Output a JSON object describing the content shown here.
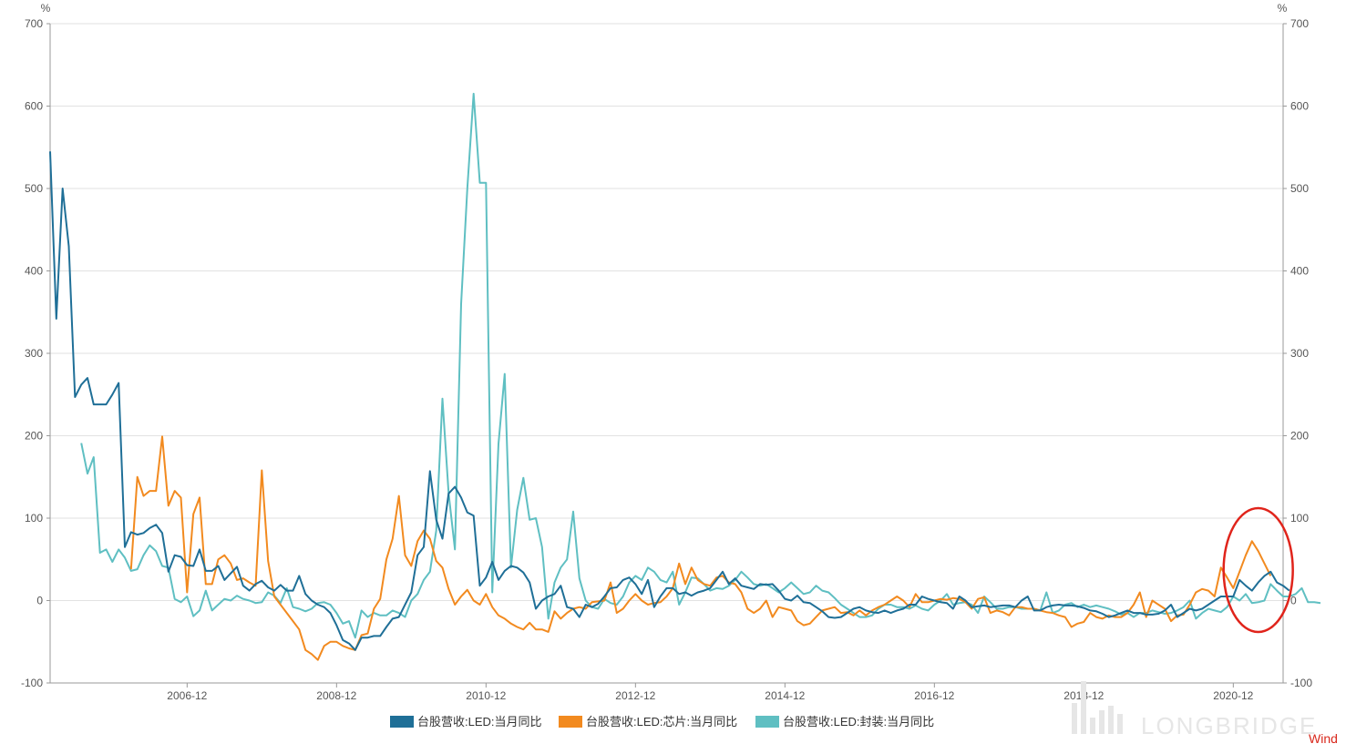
{
  "chart_data": {
    "type": "line",
    "title": "",
    "unit_left": "%",
    "unit_right": "%",
    "ylim": [
      -100,
      700
    ],
    "y_ticks": [
      -100,
      0,
      100,
      200,
      300,
      400,
      500,
      600,
      700
    ],
    "x_ticks": [
      "2006-12",
      "2008-12",
      "2010-12",
      "2012-12",
      "2014-12",
      "2016-12",
      "2018-12",
      "2020-12"
    ],
    "x_range": [
      "2005-02",
      "2021-08"
    ],
    "grid": true,
    "legend_position": "bottom",
    "colors": {
      "series1": "#1f6f97",
      "series2": "#f28a1f",
      "series3": "#5fbfc2",
      "annotation": "#e0241b"
    },
    "annotation": {
      "type": "ellipse",
      "color": "#e0241b",
      "center": [
        "2021-04",
        37
      ],
      "note": ""
    },
    "series": [
      {
        "name": "台股营收:LED:当月同比",
        "start": "2005-02",
        "values": [
          545,
          342,
          500,
          430,
          247,
          262,
          270,
          238,
          238,
          238,
          250,
          264,
          65,
          83,
          80,
          82,
          88,
          92,
          82,
          35,
          55,
          53,
          43,
          42,
          62,
          36,
          36,
          42,
          25,
          33,
          41,
          18,
          12,
          20,
          24,
          16,
          12,
          19,
          12,
          12,
          30,
          8,
          0,
          -5,
          -8,
          -15,
          -30,
          -48,
          -52,
          -60,
          -45,
          -45,
          -43,
          -43,
          -32,
          -22,
          -20,
          -5,
          10,
          55,
          65,
          157,
          98,
          75,
          130,
          138,
          125,
          107,
          103,
          18,
          28,
          47,
          25,
          36,
          42,
          40,
          34,
          22,
          -10,
          0,
          5,
          8,
          18,
          -8,
          -10,
          -20,
          -5,
          -8,
          -4,
          5,
          15,
          16,
          25,
          28,
          20,
          8,
          25,
          -8,
          5,
          15,
          15,
          8,
          10,
          6,
          10,
          12,
          15,
          25,
          35,
          20,
          27,
          18,
          16,
          14,
          20,
          19,
          20,
          12,
          2,
          0,
          6,
          -2,
          -3,
          -8,
          -13,
          -20,
          -21,
          -20,
          -15,
          -10,
          -8,
          -12,
          -14,
          -15,
          -12,
          -15,
          -12,
          -10,
          -5,
          -5,
          5,
          2,
          0,
          -2,
          -3,
          -10,
          5,
          0,
          -8,
          -7,
          -6,
          -8,
          -7,
          -6,
          -6,
          -8,
          0,
          5,
          -12,
          -12,
          -8,
          -6,
          -5,
          -6,
          -6,
          -7,
          -9,
          -12,
          -13,
          -16,
          -20,
          -18,
          -15,
          -12,
          -15,
          -15,
          -17,
          -17,
          -16,
          -12,
          -5,
          -20,
          -15,
          -10,
          -12,
          -10,
          -5,
          0,
          5,
          5,
          5,
          25,
          18,
          12,
          22,
          30,
          35,
          22,
          18,
          12
        ]
      },
      {
        "name": "台股营收:LED:芯片:当月同比",
        "start": "2006-03",
        "values": [
          38,
          150,
          127,
          133,
          133,
          199,
          115,
          133,
          125,
          10,
          105,
          125,
          20,
          20,
          50,
          55,
          45,
          25,
          27,
          22,
          18,
          158,
          48,
          5,
          -5,
          -15,
          -25,
          -35,
          -60,
          -65,
          -72,
          -55,
          -50,
          -50,
          -55,
          -58,
          -60,
          -42,
          -40,
          -10,
          2,
          50,
          75,
          127,
          55,
          42,
          72,
          85,
          75,
          48,
          40,
          14,
          -5,
          5,
          13,
          0,
          -5,
          8,
          -8,
          -18,
          -22,
          -28,
          -32,
          -35,
          -27,
          -35,
          -35,
          -38,
          -13,
          -22,
          -15,
          -10,
          -8,
          -10,
          -2,
          -1,
          0,
          22,
          -15,
          -10,
          0,
          8,
          0,
          -5,
          -3,
          -2,
          5,
          15,
          45,
          20,
          40,
          25,
          20,
          18,
          28,
          30,
          22,
          20,
          10,
          -10,
          -15,
          -10,
          0,
          -20,
          -8,
          -10,
          -12,
          -25,
          -30,
          -28,
          -20,
          -12,
          -10,
          -8,
          -15,
          -14,
          -18,
          -12,
          -18,
          -12,
          -8,
          -5,
          0,
          5,
          0,
          -8,
          8,
          -2,
          -2,
          0,
          2,
          1,
          3,
          2,
          -2,
          -10,
          2,
          4,
          -15,
          -12,
          -14,
          -18,
          -8,
          -8,
          -10,
          -10,
          -12,
          -14,
          -15,
          -18,
          -20,
          -32,
          -28,
          -26,
          -15,
          -20,
          -22,
          -18,
          -20,
          -20,
          -15,
          -5,
          10,
          -20,
          0,
          -5,
          -10,
          -25,
          -18,
          -17,
          -5,
          10,
          14,
          12,
          5,
          40,
          28,
          15,
          35,
          55,
          72,
          60,
          45,
          30
        ]
      },
      {
        "name": "台股营收:LED:封装:当月同比",
        "start": "2005-07",
        "values": [
          191,
          154,
          174,
          58,
          62,
          47,
          62,
          52,
          36,
          38,
          55,
          67,
          60,
          42,
          40,
          2,
          -2,
          5,
          -19,
          -12,
          12,
          -12,
          -5,
          2,
          0,
          6,
          2,
          0,
          -3,
          -2,
          10,
          6,
          -3,
          15,
          -8,
          -10,
          -13,
          -10,
          -3,
          -2,
          -5,
          -15,
          -28,
          -25,
          -45,
          -12,
          -20,
          -15,
          -18,
          -18,
          -12,
          -15,
          -20,
          0,
          8,
          25,
          35,
          85,
          245,
          130,
          62,
          360,
          500,
          615,
          507,
          507,
          10,
          190,
          275,
          40,
          110,
          149,
          98,
          100,
          65,
          -22,
          22,
          40,
          50,
          108,
          27,
          0,
          -8,
          -10,
          2,
          -3,
          -5,
          5,
          22,
          30,
          25,
          40,
          35,
          25,
          22,
          35,
          -5,
          10,
          28,
          27,
          20,
          12,
          15,
          14,
          18,
          25,
          35,
          28,
          20,
          18,
          20,
          15,
          10,
          15,
          22,
          15,
          8,
          10,
          18,
          12,
          10,
          3,
          -5,
          -10,
          -15,
          -20,
          -20,
          -18,
          -10,
          -5,
          -5,
          -8,
          -8,
          -10,
          -6,
          -10,
          -12,
          -5,
          0,
          8,
          -5,
          -3,
          -2,
          -5,
          -15,
          5,
          -2,
          -10,
          -10,
          -8,
          -8,
          -10,
          -10,
          -10,
          -12,
          10,
          -15,
          -12,
          -5,
          -3,
          -8,
          -5,
          -8,
          -6,
          -8,
          -10,
          -13,
          -17,
          -15,
          -20,
          -15,
          -15,
          -12,
          -14,
          -16,
          -15,
          -12,
          -8,
          0,
          -22,
          -15,
          -10,
          -12,
          -14,
          -8,
          5,
          0,
          8,
          -3,
          -2,
          0,
          20,
          12,
          5,
          5,
          8,
          15,
          -2,
          -2,
          -3
        ]
      }
    ]
  },
  "watermark": "LONGBRIDGE",
  "source_label": "Wind"
}
